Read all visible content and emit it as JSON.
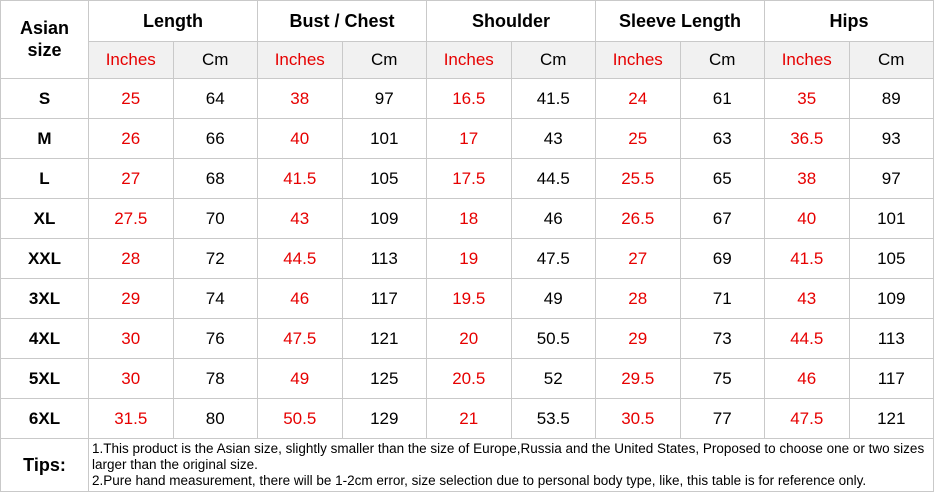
{
  "colors": {
    "accent_red": "#e60000",
    "text_black": "#000000",
    "subheader_bg": "#f1f1f1",
    "border": "#c9c9c9"
  },
  "chart_data": {
    "type": "table",
    "corner_header": "Asian size",
    "groups": [
      "Length",
      "Bust / Chest",
      "Shoulder",
      "Sleeve Length",
      "Hips"
    ],
    "unit_labels": [
      "Inches",
      "Cm"
    ],
    "sizes": [
      "S",
      "M",
      "L",
      "XL",
      "XXL",
      "3XL",
      "4XL",
      "5XL",
      "6XL"
    ],
    "rows": [
      [
        25,
        64,
        38,
        97,
        16.5,
        41.5,
        24,
        61,
        35,
        89
      ],
      [
        26,
        66,
        40,
        101,
        17,
        43,
        25,
        63,
        36.5,
        93
      ],
      [
        27,
        68,
        41.5,
        105,
        17.5,
        44.5,
        25.5,
        65,
        38,
        97
      ],
      [
        27.5,
        70,
        43,
        109,
        18,
        46,
        26.5,
        67,
        40,
        101
      ],
      [
        28,
        72,
        44.5,
        113,
        19,
        47.5,
        27,
        69,
        41.5,
        105
      ],
      [
        29,
        74,
        46,
        117,
        19.5,
        49,
        28,
        71,
        43,
        109
      ],
      [
        30,
        76,
        47.5,
        121,
        20,
        50.5,
        29,
        73,
        44.5,
        113
      ],
      [
        30,
        78,
        49,
        125,
        20.5,
        52,
        29.5,
        75,
        46,
        117
      ],
      [
        31.5,
        80,
        50.5,
        129,
        21,
        53.5,
        30.5,
        77,
        47.5,
        121
      ]
    ],
    "tips_label": "Tips:",
    "tips_lines": [
      "1.This product is the Asian size, slightly smaller than the size of Europe,Russia and the United States, Proposed to choose one or two sizes larger than the original size.",
      "2.Pure hand measurement, there will be 1-2cm error, size selection due to personal body type, like, this table is for reference only."
    ]
  }
}
